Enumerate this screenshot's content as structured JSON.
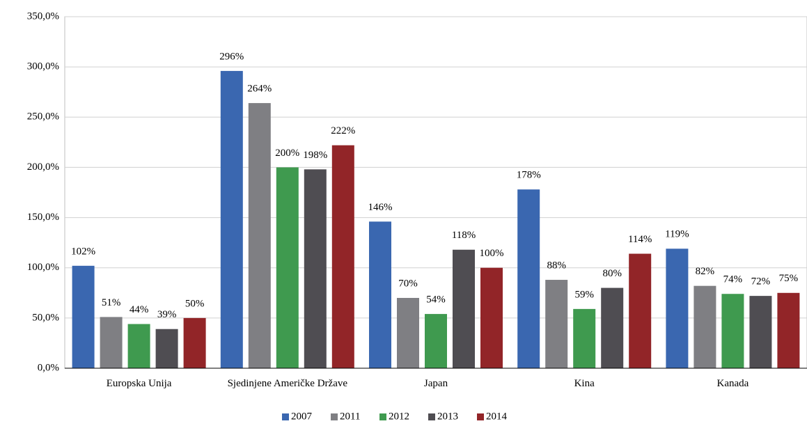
{
  "chart_data": {
    "type": "bar",
    "categories": [
      "Europska Unija",
      "Sjedinjene Američke Države",
      "Japan",
      "Kina",
      "Kanada"
    ],
    "series": [
      {
        "name": "2007",
        "color": "#3a67b0",
        "values": [
          102,
          296,
          146,
          178,
          119
        ],
        "value_labels": [
          "102%",
          "296%",
          "146%",
          "178%",
          "119%"
        ]
      },
      {
        "name": "2011",
        "color": "#7f7f83",
        "values": [
          51,
          264,
          70,
          88,
          82
        ],
        "value_labels": [
          "51%",
          "264%",
          "70%",
          "88%",
          "82%"
        ]
      },
      {
        "name": "2012",
        "color": "#3f9a4f",
        "values": [
          44,
          200,
          54,
          59,
          74
        ],
        "value_labels": [
          "44%",
          "200%",
          "54%",
          "59%",
          "74%"
        ]
      },
      {
        "name": "2013",
        "color": "#4f4d52",
        "values": [
          39,
          198,
          118,
          80,
          72
        ],
        "value_labels": [
          "39%",
          "198%",
          "118%",
          "80%",
          "72%"
        ]
      },
      {
        "name": "2014",
        "color": "#922528",
        "values": [
          50,
          222,
          100,
          114,
          75
        ],
        "value_labels": [
          "50%",
          "222%",
          "100%",
          "114%",
          "75%"
        ]
      }
    ],
    "ylim": [
      0,
      350
    ],
    "yticks": [
      {
        "value": 0,
        "label": "0,0%"
      },
      {
        "value": 50,
        "label": "50,0%"
      },
      {
        "value": 100,
        "label": "100,0%"
      },
      {
        "value": 150,
        "label": "150,0%"
      },
      {
        "value": 200,
        "label": "200,0%"
      },
      {
        "value": 250,
        "label": "250,0%"
      },
      {
        "value": 300,
        "label": "300,0%"
      },
      {
        "value": 350,
        "label": "350,0%"
      }
    ],
    "grid": true,
    "legend": "bottom"
  }
}
